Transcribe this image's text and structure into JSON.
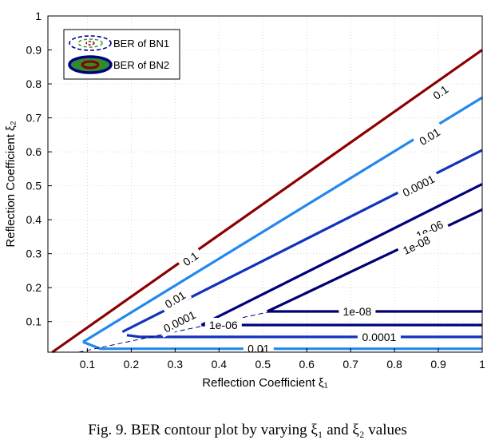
{
  "chart_data": {
    "type": "contour",
    "xlabel": "Reflection Coefficient ξ₁",
    "ylabel": "Reflection Coefficient ξ₂",
    "xlim": [
      0.01,
      1
    ],
    "ylim": [
      0.01,
      1
    ],
    "xticks": [
      "0.1",
      "0.2",
      "0.3",
      "0.4",
      "0.5",
      "0.6",
      "0.7",
      "0.8",
      "0.9",
      "1"
    ],
    "yticks": [
      "0.1",
      "0.2",
      "0.3",
      "0.4",
      "0.5",
      "0.6",
      "0.7",
      "0.8",
      "0.9",
      "1"
    ],
    "grid": true,
    "legend_position": "top-left",
    "legend": [
      {
        "label": "BER of BN1",
        "style": "dashed ellipse"
      },
      {
        "label": "BER of BN2",
        "style": "solid ellipse"
      }
    ],
    "colors": {
      "c_0_1": "#8b0000",
      "c_0_01": "#2288ee",
      "c_1e_4": "#1133bb",
      "c_1e_6": "#000080",
      "c_1e_8": "#00006e",
      "legend_green": "#2e8b2e"
    },
    "series": [
      {
        "name": "0.1",
        "curve": "BN2",
        "points": [
          [
            0.02,
            0.01
          ],
          [
            1.0,
            0.9
          ]
        ],
        "color_key": "c_0_1",
        "labels": [
          [
            0.335,
            0.285
          ],
          [
            0.905,
            0.775
          ]
        ]
      },
      {
        "name": "0.01",
        "curve": "BN2",
        "points": [
          [
            0.09,
            0.04
          ],
          [
            1.0,
            0.76
          ]
        ],
        "color_key": "c_0_01",
        "labels": [
          [
            0.3,
            0.165
          ],
          [
            0.88,
            0.645
          ]
        ]
      },
      {
        "name": "0.0001",
        "curve": "BN2",
        "points": [
          [
            0.18,
            0.07
          ],
          [
            1.0,
            0.605
          ]
        ],
        "color_key": "c_1e_4",
        "labels": [
          [
            0.31,
            0.1
          ],
          [
            0.855,
            0.5
          ]
        ]
      },
      {
        "name": "1e-06",
        "curve": "BN2",
        "points": [
          [
            0.36,
            0.09
          ],
          [
            1.0,
            0.505
          ]
        ],
        "color_key": "c_1e_6",
        "labels": [
          [
            0.88,
            0.37
          ]
        ]
      },
      {
        "name": "1e-08",
        "curve": "BN2",
        "points": [
          [
            0.51,
            0.13
          ],
          [
            1.0,
            0.43
          ]
        ],
        "color_key": "c_1e_8",
        "labels": [
          [
            0.85,
            0.325
          ]
        ]
      },
      {
        "name": "0.01",
        "curve": "BN1",
        "points": [
          [
            0.09,
            0.04
          ],
          [
            0.13,
            0.02
          ],
          [
            1.0,
            0.02
          ]
        ],
        "color_key": "c_0_01",
        "labels": [
          [
            0.49,
            0.02
          ]
        ]
      },
      {
        "name": "0.0001",
        "curve": "BN1",
        "points": [
          [
            0.19,
            0.06
          ],
          [
            0.22,
            0.055
          ],
          [
            1.0,
            0.055
          ]
        ],
        "color_key": "c_1e_4",
        "labels": [
          [
            0.765,
            0.055
          ]
        ]
      },
      {
        "name": "1e-06",
        "curve": "BN1",
        "points": [
          [
            0.36,
            0.09
          ],
          [
            0.37,
            0.09
          ],
          [
            1.0,
            0.09
          ]
        ],
        "color_key": "c_1e_6",
        "labels": [
          [
            0.41,
            0.09
          ]
        ]
      },
      {
        "name": "1e-08",
        "curve": "BN1",
        "points": [
          [
            0.51,
            0.13
          ],
          [
            0.53,
            0.13
          ],
          [
            1.0,
            0.13
          ]
        ],
        "color_key": "c_1e_8",
        "labels": [
          [
            0.715,
            0.13
          ]
        ]
      },
      {
        "name": "boundary",
        "curve": "BN1",
        "points": [
          [
            0.08,
            0.01
          ],
          [
            0.52,
            0.13
          ]
        ],
        "color_key": "c_1e_8",
        "labels": []
      }
    ]
  },
  "caption": "Fig. 9.  BER contour plot by varying ξ₁ and ξ₂ values"
}
